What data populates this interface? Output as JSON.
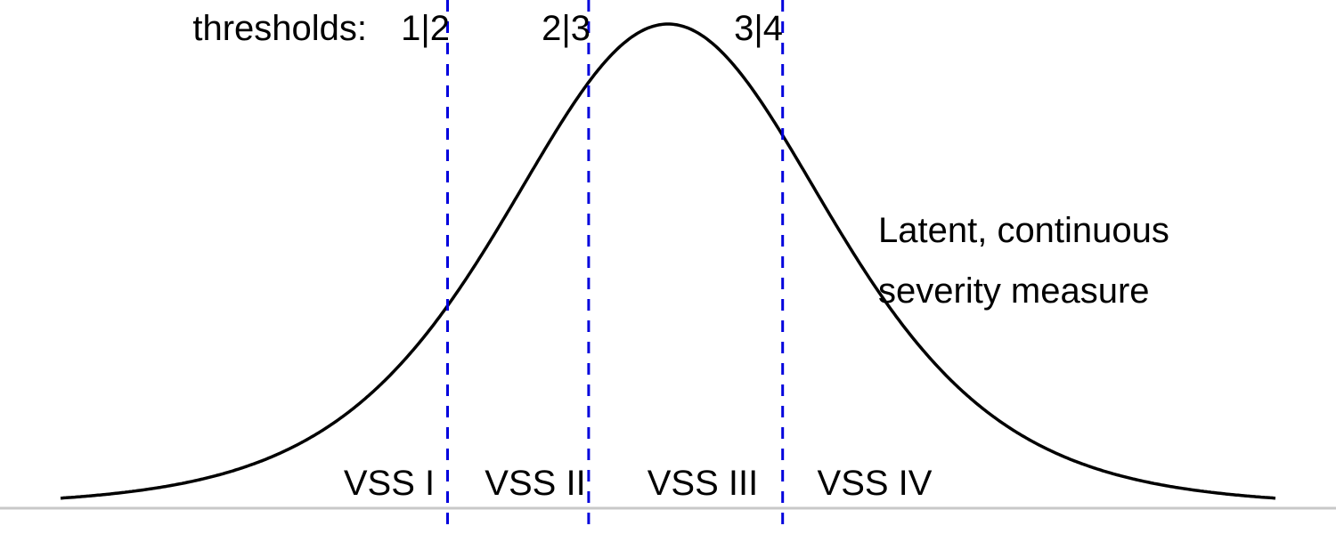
{
  "diagram": {
    "thresholds_prefix": "thresholds:",
    "thresholds": [
      {
        "label": "1|2",
        "value": -1.25
      },
      {
        "label": "2|3",
        "value": -0.45
      },
      {
        "label": "3|4",
        "value": 0.65
      }
    ],
    "categories": [
      "VSS I",
      "VSS II",
      "VSS III",
      "VSS IV"
    ],
    "curve_label_line1": "Latent, continuous",
    "curve_label_line2": "severity measure",
    "colors": {
      "curve": "#000000",
      "threshold_line": "#0000dd",
      "baseline": "#c8c8c8",
      "text": "#000000"
    }
  }
}
